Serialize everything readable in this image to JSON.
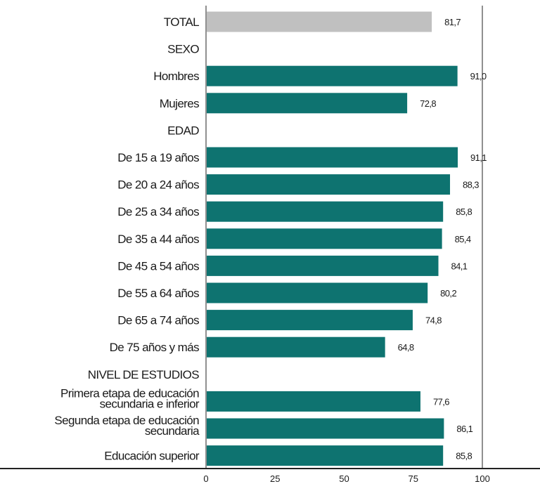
{
  "chart_data": {
    "type": "bar",
    "orientation": "horizontal",
    "xlim": [
      0,
      100
    ],
    "x_ticks": [
      "0",
      "25",
      "50",
      "75",
      "100"
    ],
    "colors": {
      "total": "#c0c0c0",
      "bars": "#0e7370"
    },
    "rows": [
      {
        "label": "TOTAL",
        "value": 81.7,
        "value_label": "81,7",
        "highlight": true
      },
      {
        "label": "SEXO",
        "section": true
      },
      {
        "label": "Hombres",
        "value": 91.0,
        "value_label": "91,0"
      },
      {
        "label": "Mujeres",
        "value": 72.8,
        "value_label": "72,8"
      },
      {
        "label": "EDAD",
        "section": true
      },
      {
        "label": "De 15 a 19 años",
        "value": 91.1,
        "value_label": "91,1"
      },
      {
        "label": "De 20 a 24 años",
        "value": 88.3,
        "value_label": "88,3"
      },
      {
        "label": "De 25 a 34 años",
        "value": 85.8,
        "value_label": "85,8"
      },
      {
        "label": "De 35 a 44 años",
        "value": 85.4,
        "value_label": "85,4"
      },
      {
        "label": "De 45 a 54 años",
        "value": 84.1,
        "value_label": "84,1"
      },
      {
        "label": "De 55 a 64 años",
        "value": 80.2,
        "value_label": "80,2"
      },
      {
        "label": "De 65 a 74 años",
        "value": 74.8,
        "value_label": "74,8"
      },
      {
        "label": "De 75 años y más",
        "value": 64.8,
        "value_label": "64,8"
      },
      {
        "label": "NIVEL DE ESTUDIOS",
        "section": true
      },
      {
        "label": [
          "Primera etapa de educación",
          "secundaria e inferior"
        ],
        "value": 77.6,
        "value_label": "77,6"
      },
      {
        "label": [
          "Segunda etapa de educación",
          "secundaria"
        ],
        "value": 86.1,
        "value_label": "86,1"
      },
      {
        "label": "Educación superior",
        "value": 85.8,
        "value_label": "85,8"
      }
    ]
  }
}
